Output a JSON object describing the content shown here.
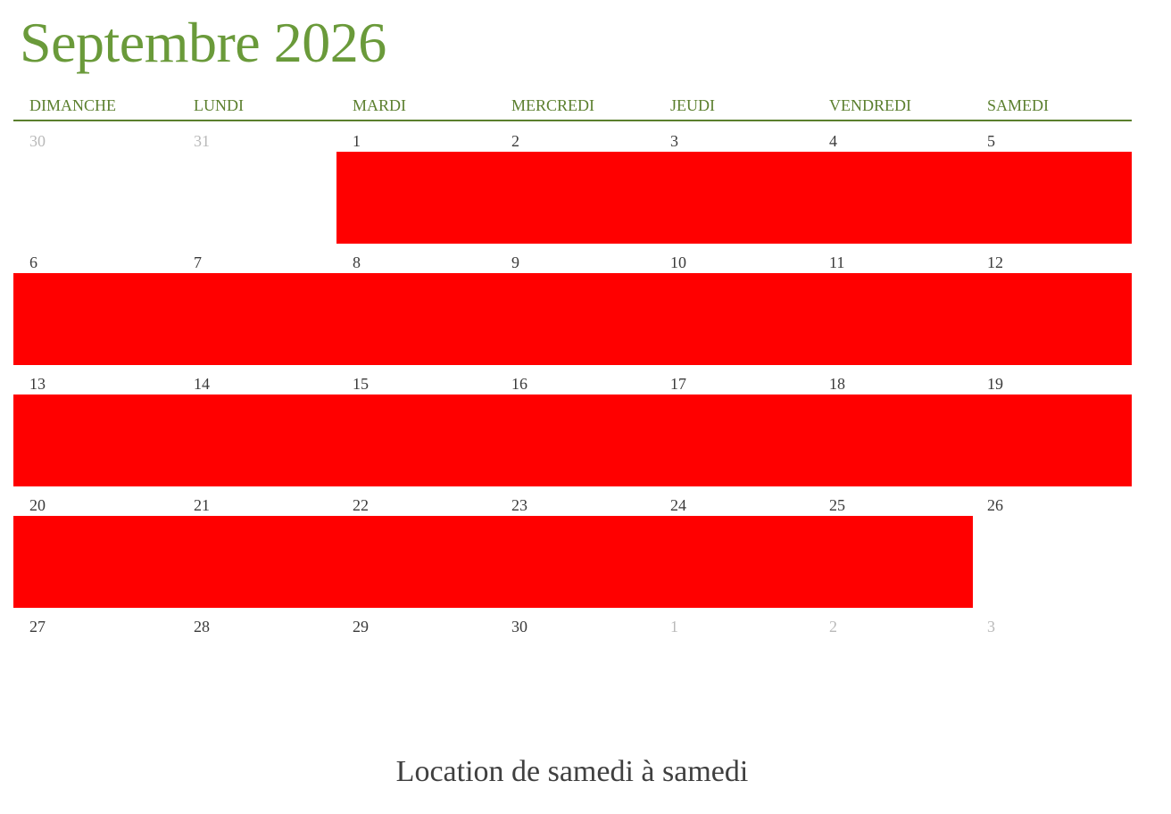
{
  "calendar": {
    "title": "Septembre 2026",
    "weekdays": [
      "DIMANCHE",
      "LUNDI",
      "MARDI",
      "MERCREDI",
      "JEUDI",
      "VENDREDI",
      "SAMEDI"
    ],
    "weeks": [
      [
        {
          "label": "30",
          "in_month": false
        },
        {
          "label": "31",
          "in_month": false
        },
        {
          "label": "1",
          "in_month": true
        },
        {
          "label": "2",
          "in_month": true
        },
        {
          "label": "3",
          "in_month": true
        },
        {
          "label": "4",
          "in_month": true
        },
        {
          "label": "5",
          "in_month": true
        }
      ],
      [
        {
          "label": "6",
          "in_month": true
        },
        {
          "label": "7",
          "in_month": true
        },
        {
          "label": "8",
          "in_month": true
        },
        {
          "label": "9",
          "in_month": true
        },
        {
          "label": "10",
          "in_month": true
        },
        {
          "label": "11",
          "in_month": true
        },
        {
          "label": "12",
          "in_month": true
        }
      ],
      [
        {
          "label": "13",
          "in_month": true
        },
        {
          "label": "14",
          "in_month": true
        },
        {
          "label": "15",
          "in_month": true
        },
        {
          "label": "16",
          "in_month": true
        },
        {
          "label": "17",
          "in_month": true
        },
        {
          "label": "18",
          "in_month": true
        },
        {
          "label": "19",
          "in_month": true
        }
      ],
      [
        {
          "label": "20",
          "in_month": true
        },
        {
          "label": "21",
          "in_month": true
        },
        {
          "label": "22",
          "in_month": true
        },
        {
          "label": "23",
          "in_month": true
        },
        {
          "label": "24",
          "in_month": true
        },
        {
          "label": "25",
          "in_month": true
        },
        {
          "label": "26",
          "in_month": true
        }
      ],
      [
        {
          "label": "27",
          "in_month": true
        },
        {
          "label": "28",
          "in_month": true
        },
        {
          "label": "29",
          "in_month": true
        },
        {
          "label": "30",
          "in_month": true
        },
        {
          "label": "1",
          "in_month": false
        },
        {
          "label": "2",
          "in_month": false
        },
        {
          "label": "3",
          "in_month": false
        }
      ]
    ],
    "booked_ranges": [
      {
        "week": 0,
        "from_day": 2,
        "to_day": 6
      },
      {
        "week": 1,
        "from_day": 0,
        "to_day": 6
      },
      {
        "week": 2,
        "from_day": 0,
        "to_day": 6
      },
      {
        "week": 3,
        "from_day": 0,
        "to_day": 5
      }
    ],
    "footer_note": "Location de samedi à samedi"
  },
  "colors": {
    "title": "#6a9a3a",
    "weekday": "#5b7f2e",
    "booked": "#ff0000",
    "day_text": "#3a3a3a",
    "muted_text": "#b9b9b9"
  }
}
